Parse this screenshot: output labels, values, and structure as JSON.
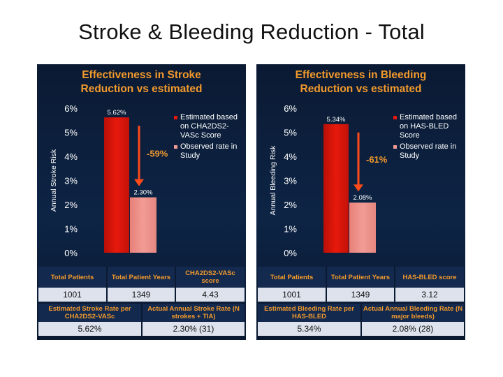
{
  "slide_title": "Stroke & Bleeding Reduction - Total",
  "colors": {
    "title_orange": "#f39a2c",
    "estimated_bar": "#e8190c",
    "observed_bar": "#f29b95",
    "arrow": "#ff4a1a",
    "panel_bg": "#0d2445"
  },
  "chart_data": [
    {
      "type": "bar",
      "title": "Effectiveness in Stroke Reduction vs estimated",
      "title_lines": [
        "Effectiveness in Stroke",
        "Reduction vs estimated"
      ],
      "ylabel": "Annual Stroke Risk",
      "ylim": [
        0,
        6
      ],
      "yticks": [
        "0%",
        "1%",
        "2%",
        "3%",
        "4%",
        "5%",
        "6%"
      ],
      "categories": [
        "Estimated",
        "Observed"
      ],
      "values": [
        5.62,
        2.3
      ],
      "value_labels": [
        "5.62%",
        "2.30%"
      ],
      "reduction_label": "-59%",
      "legend": [
        {
          "label": "Estimated based on CHA2DS2-VASc Score",
          "color": "#e8190c"
        },
        {
          "label": "Observed rate in Study",
          "color": "#f29b95"
        }
      ],
      "table": {
        "row1_headers": [
          "Total Patients",
          "Total Patient Years",
          "CHA2DS2-VASc score"
        ],
        "row1_values": [
          "1001",
          "1349",
          "4.43"
        ],
        "row2_headers": [
          "Estimated Stroke Rate per CHA2DS2-VASc",
          "Actual Annual Stroke Rate (N strokes + TIA)"
        ],
        "row2_values": [
          "5.62%",
          "2.30% (31)"
        ]
      }
    },
    {
      "type": "bar",
      "title": "Effectiveness in Bleeding Reduction vs estimated",
      "title_lines": [
        "Effectiveness in Bleeding",
        "Reduction vs estimated"
      ],
      "ylabel": "Annual Bleeding Risk",
      "ylim": [
        0,
        6
      ],
      "yticks": [
        "0%",
        "1%",
        "2%",
        "3%",
        "4%",
        "5%",
        "6%"
      ],
      "categories": [
        "Estimated",
        "Observed"
      ],
      "values": [
        5.34,
        2.08
      ],
      "value_labels": [
        "5.34%",
        "2.08%"
      ],
      "reduction_label": "-61%",
      "legend": [
        {
          "label": "Estimated based on HAS-BLED Score",
          "color": "#e8190c"
        },
        {
          "label": "Observed rate in Study",
          "color": "#f29b95"
        }
      ],
      "table": {
        "row1_headers": [
          "Total Patients",
          "Total Patient Years",
          "HAS-BLED score"
        ],
        "row1_values": [
          "1001",
          "1349",
          "3.12"
        ],
        "row2_headers": [
          "Estimated Bleeding Rate per HAS-BLED",
          "Actual Annual Bleeding Rate (N major bleeds)"
        ],
        "row2_values": [
          "5.34%",
          "2.08% (28)"
        ]
      }
    }
  ]
}
